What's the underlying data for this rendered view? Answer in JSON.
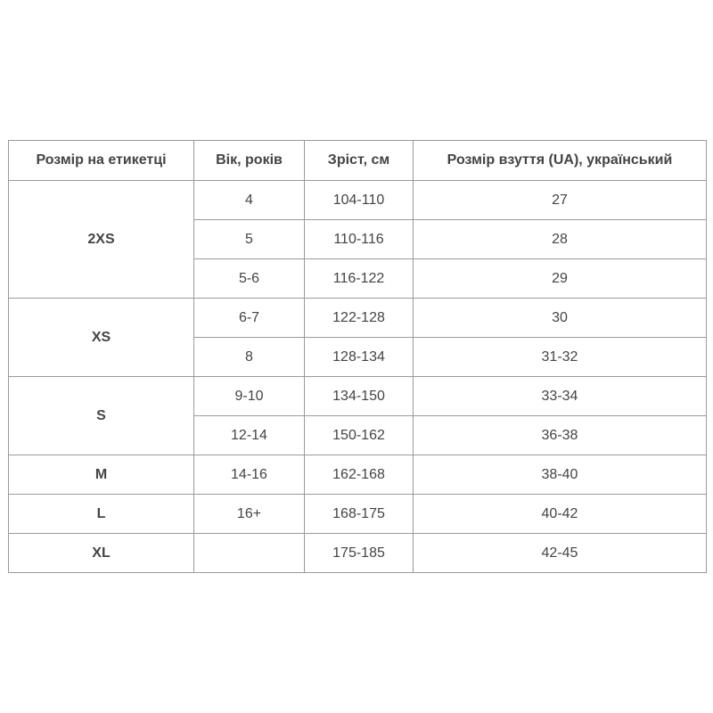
{
  "headers": [
    "Розмір на етикетці",
    "Вік, років",
    "Зріст, см",
    "Розмір взуття (UA), український"
  ],
  "groups": [
    {
      "size": "2XS",
      "rows": [
        [
          "4",
          "104-110",
          "27"
        ],
        [
          "5",
          "110-116",
          "28"
        ],
        [
          "5-6",
          "116-122",
          "29"
        ]
      ]
    },
    {
      "size": "XS",
      "rows": [
        [
          "6-7",
          "122-128",
          "30"
        ],
        [
          "8",
          "128-134",
          "31-32"
        ]
      ]
    },
    {
      "size": "S",
      "rows": [
        [
          "9-10",
          "134-150",
          "33-34"
        ],
        [
          "12-14",
          "150-162",
          "36-38"
        ]
      ]
    },
    {
      "size": "M",
      "rows": [
        [
          "14-16",
          "162-168",
          "38-40"
        ]
      ]
    },
    {
      "size": "L",
      "rows": [
        [
          "16+",
          "168-175",
          "40-42"
        ]
      ]
    },
    {
      "size": "XL",
      "rows": [
        [
          "",
          "175-185",
          "42-45"
        ]
      ]
    }
  ]
}
